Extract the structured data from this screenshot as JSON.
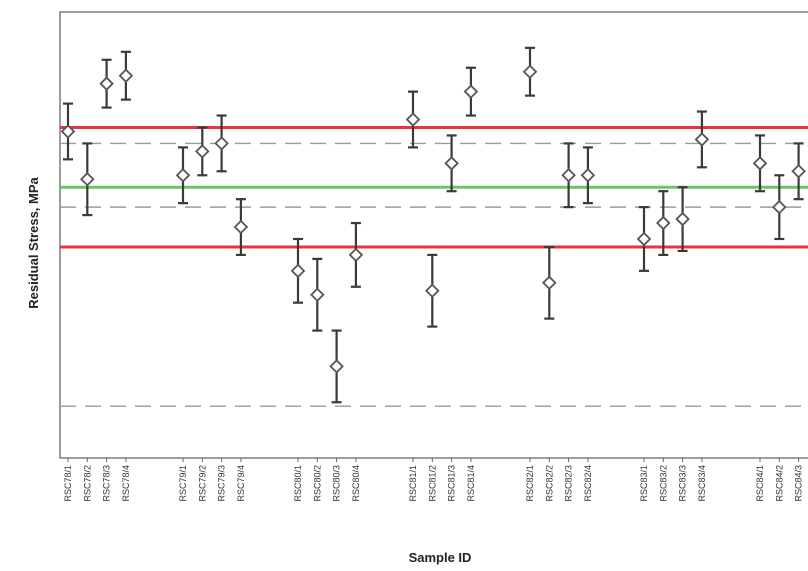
{
  "chart_data": {
    "type": "scatter",
    "title": "",
    "xlabel": "Sample ID",
    "ylabel": "Residual Stress, MPa",
    "y_tick_labels": false,
    "grid": false,
    "legend": "none",
    "groups": [
      {
        "points": [
          {
            "label": "RSC78/1",
            "y": 0.82,
            "err": 0.07
          },
          {
            "label": "RSC78/2",
            "y": 0.7,
            "err": 0.09
          },
          {
            "label": "RSC78/3",
            "y": 0.94,
            "err": 0.06
          },
          {
            "label": "RSC78/4",
            "y": 0.96,
            "err": 0.06
          }
        ]
      },
      {
        "points": [
          {
            "label": "RSC79/1",
            "y": 0.71,
            "err": 0.07
          },
          {
            "label": "RSC79/2",
            "y": 0.77,
            "err": 0.06
          },
          {
            "label": "RSC79/3",
            "y": 0.79,
            "err": 0.07
          },
          {
            "label": "RSC79/4",
            "y": 0.58,
            "err": 0.07
          }
        ]
      },
      {
        "points": [
          {
            "label": "RSC80/1",
            "y": 0.47,
            "err": 0.08
          },
          {
            "label": "RSC80/2",
            "y": 0.41,
            "err": 0.09
          },
          {
            "label": "RSC80/3",
            "y": 0.23,
            "err": 0.09
          },
          {
            "label": "RSC80/4",
            "y": 0.51,
            "err": 0.08
          }
        ]
      },
      {
        "points": [
          {
            "label": "RSC81/1",
            "y": 0.85,
            "err": 0.07
          },
          {
            "label": "RSC81/2",
            "y": 0.42,
            "err": 0.09
          },
          {
            "label": "RSC81/3",
            "y": 0.74,
            "err": 0.07
          },
          {
            "label": "RSC81/4",
            "y": 0.92,
            "err": 0.06
          }
        ]
      },
      {
        "points": [
          {
            "label": "RSC82/1",
            "y": 0.97,
            "err": 0.06
          },
          {
            "label": "RSC82/2",
            "y": 0.44,
            "err": 0.09
          },
          {
            "label": "RSC82/3",
            "y": 0.71,
            "err": 0.08
          },
          {
            "label": "RSC82/4",
            "y": 0.71,
            "err": 0.07
          }
        ]
      },
      {
        "points": [
          {
            "label": "RSC83/1",
            "y": 0.55,
            "err": 0.08
          },
          {
            "label": "RSC83/2",
            "y": 0.59,
            "err": 0.08
          },
          {
            "label": "RSC83/3",
            "y": 0.6,
            "err": 0.08
          },
          {
            "label": "RSC83/4",
            "y": 0.8,
            "err": 0.07
          }
        ]
      },
      {
        "points": [
          {
            "label": "RSC84/1",
            "y": 0.74,
            "err": 0.07
          },
          {
            "label": "RSC84/2",
            "y": 0.63,
            "err": 0.08
          },
          {
            "label": "RSC84/3",
            "y": 0.72,
            "err": 0.07
          }
        ]
      }
    ],
    "reference_lines": [
      {
        "role": "upper-limit",
        "y": 0.83,
        "color": "#e8343f",
        "style": "solid"
      },
      {
        "role": "mean",
        "y": 0.68,
        "color": "#6fc26a",
        "style": "solid"
      },
      {
        "role": "lower-limit",
        "y": 0.53,
        "color": "#e8343f",
        "style": "solid"
      },
      {
        "role": "upper-dashed",
        "y": 0.79,
        "color": "#9a9a9a",
        "style": "dashed"
      },
      {
        "role": "lower-dashed",
        "y": 0.63,
        "color": "#9a9a9a",
        "style": "dashed"
      },
      {
        "role": "bottom-dashed",
        "y": 0.13,
        "color": "#9a9a9a",
        "style": "dashed"
      }
    ],
    "ylim": [
      0,
      1.12
    ],
    "colors": {
      "marker": "#555555",
      "errorbar": "#3a3a3a",
      "frame": "#666666"
    }
  }
}
